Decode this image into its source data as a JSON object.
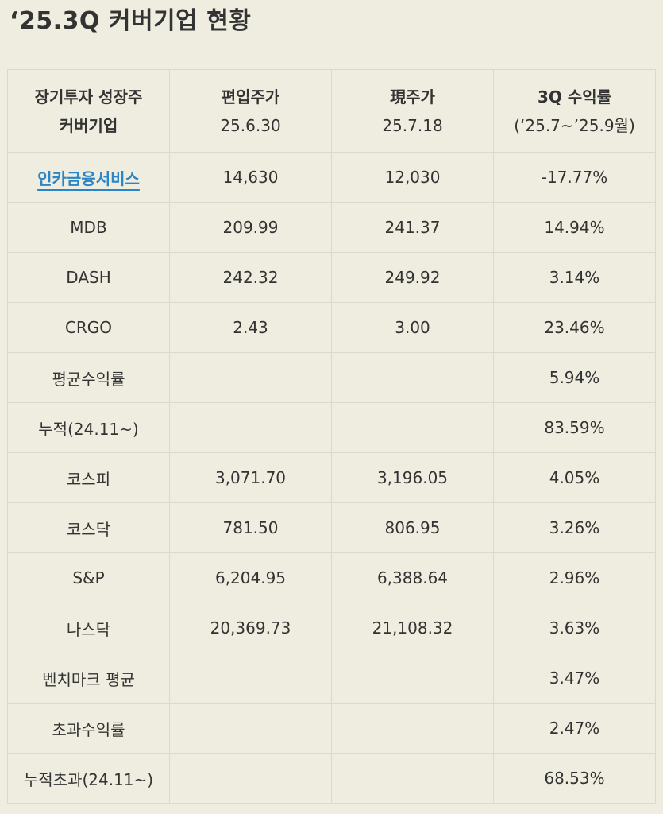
{
  "title": "‘25.3Q 커버기업 현황",
  "header": {
    "col1_line1": "장기투자 성장주",
    "col1_line2": "커버기업",
    "col2_line1": "편입주가",
    "col2_line2": "25.6.30",
    "col3_line1": "現주가",
    "col3_line2": "25.7.18",
    "col4_line1": "3Q 수익률",
    "col4_line2": "(‘25.7~’25.9월)"
  },
  "rows": [
    {
      "name": "인카금융서비스",
      "entry": "14,630",
      "current": "12,030",
      "ret": "-17.77%"
    },
    {
      "name": "MDB",
      "entry": "209.99",
      "current": "241.37",
      "ret": "14.94%"
    },
    {
      "name": "DASH",
      "entry": "242.32",
      "current": "249.92",
      "ret": "3.14%"
    },
    {
      "name": "CRGO",
      "entry": "2.43",
      "current": "3.00",
      "ret": "23.46%"
    },
    {
      "name": "평균수익률",
      "entry": "",
      "current": "",
      "ret": "5.94%"
    },
    {
      "name": "누적(24.11~)",
      "entry": "",
      "current": "",
      "ret": "83.59%"
    },
    {
      "name": "코스피",
      "entry": "3,071.70",
      "current": "3,196.05",
      "ret": "4.05%"
    },
    {
      "name": "코스닥",
      "entry": "781.50",
      "current": "806.95",
      "ret": "3.26%"
    },
    {
      "name": "S&P",
      "entry": "6,204.95",
      "current": "6,388.64",
      "ret": "2.96%"
    },
    {
      "name": "나스닥",
      "entry": "20,369.73",
      "current": "21,108.32",
      "ret": "3.63%"
    },
    {
      "name": "벤치마크 평균",
      "entry": "",
      "current": "",
      "ret": "3.47%"
    },
    {
      "name": "초과수익률",
      "entry": "",
      "current": "",
      "ret": "2.47%"
    },
    {
      "name": "누적초과(24.11~)",
      "entry": "",
      "current": "",
      "ret": "68.53%"
    }
  ],
  "colors": {
    "background": "#efeddf",
    "border": "#dcd9c9",
    "text": "#333333",
    "link": "#2a86c6"
  }
}
